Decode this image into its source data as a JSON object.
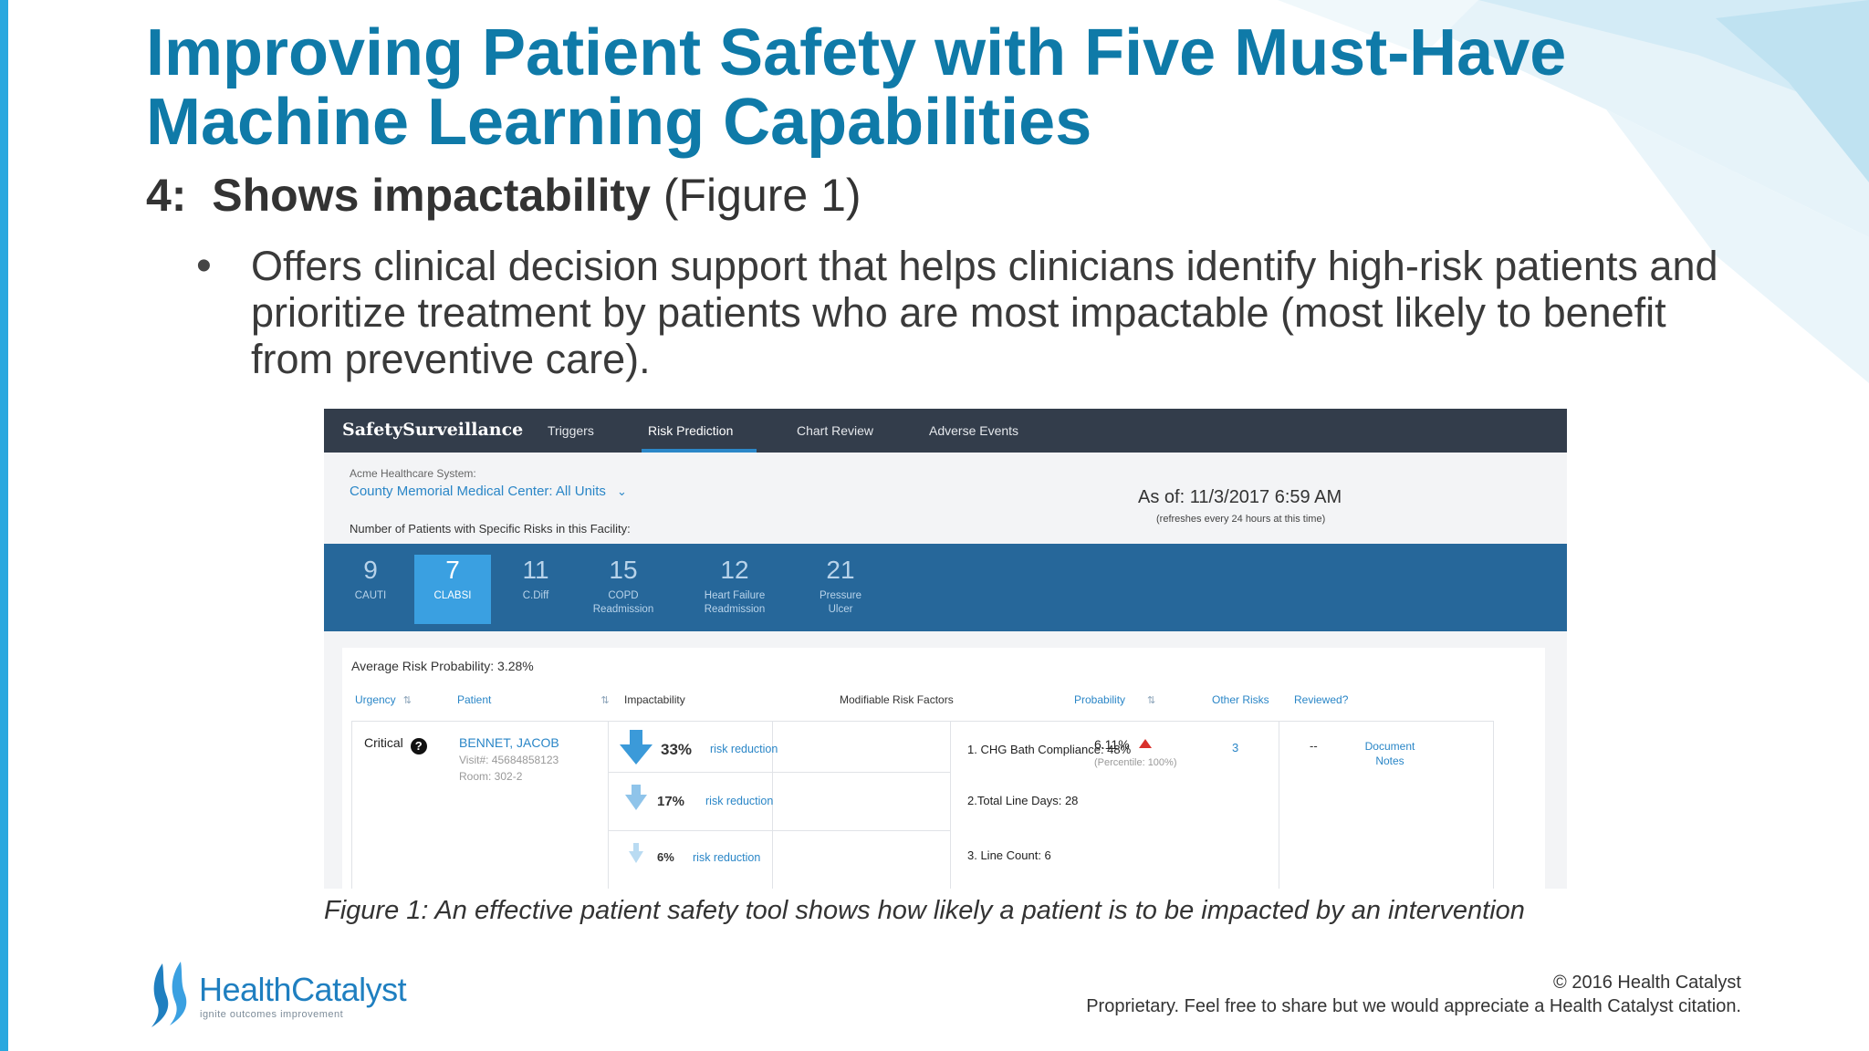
{
  "slide": {
    "title_line1": "Improving Patient Safety with Five Must-Have",
    "title_line2": "Machine Learning Capabilities",
    "subtitle_number": "4:",
    "subtitle_bold": "Shows impactability",
    "subtitle_rest": "(Figure 1)",
    "bullet_symbol": "•",
    "bullet_text": "Offers clinical decision support that helps clinicians identify high-risk patients and prioritize treatment by patients who are most impactable (most likely to benefit from preventive care).",
    "caption": "Figure 1: An effective patient safety tool shows how likely a patient is to be impacted by an intervention",
    "footer": {
      "logo_text": "HealthCatalyst",
      "logo_tagline": "ignite outcomes improvement",
      "copyright": "© 2016 Health Catalyst",
      "proprietary": "Proprietary. Feel free to share but we would appreciate a Health Catalyst citation."
    }
  },
  "app": {
    "brand": "SafetySurveillance",
    "nav": [
      {
        "label": "Triggers",
        "active": false
      },
      {
        "label": "Risk Prediction",
        "active": true
      },
      {
        "label": "Chart Review",
        "active": false
      },
      {
        "label": "Adverse Events",
        "active": false
      }
    ],
    "facility_label": "Acme Healthcare System:",
    "facility_value": "County Memorial Medical Center:  All Units",
    "count_label": "Number of Patients with Specific Risks in this Facility:",
    "as_of": "As of:  11/3/2017 6:59 AM",
    "as_of_note": "(refreshes every 24 hours at this time)",
    "risk_tabs": [
      {
        "count": "9",
        "label1": "CAUTI",
        "label2": "",
        "active": false
      },
      {
        "count": "7",
        "label1": "CLABSI",
        "label2": "",
        "active": true
      },
      {
        "count": "11",
        "label1": "C.Diff",
        "label2": "",
        "active": false
      },
      {
        "count": "15",
        "label1": "COPD",
        "label2": "Readmission",
        "active": false
      },
      {
        "count": "12",
        "label1": "Heart Failure",
        "label2": "Readmission",
        "active": false
      },
      {
        "count": "21",
        "label1": "Pressure",
        "label2": "Ulcer",
        "active": false
      }
    ],
    "avg_risk": "Average Risk Probability: 3.28%",
    "columns": {
      "urgency": "Urgency",
      "patient": "Patient",
      "impactability": "Impactability",
      "factors": "Modifiable Risk Factors",
      "probability": "Probability",
      "other_risks": "Other Risks",
      "reviewed": "Reviewed?"
    },
    "row": {
      "urgency": "Critical",
      "urgency_icon": "?",
      "patient_name": "BENNET, JACOB",
      "visit": "Visit#: 45684858123",
      "room": "Room: 302-2",
      "impacts": [
        {
          "pct": "33%",
          "text": "risk reduction",
          "factor": "1. CHG Bath Compliance: 48%"
        },
        {
          "pct": "17%",
          "text": "risk reduction",
          "factor": "2.Total Line Days: 28"
        },
        {
          "pct": "6%",
          "text": "risk reduction",
          "factor": "3. Line Count: 6"
        }
      ],
      "probability": "6.11%",
      "percentile": "(Percentile: 100%)",
      "other_risks": "3",
      "reviewed": "--",
      "doc_notes_line1": "Document",
      "doc_notes_line2": "Notes"
    },
    "colors": {
      "nav_bg": "#333d4b",
      "band_bg": "#26679a",
      "active_tab": "#3aa0e1",
      "link": "#2a86c7",
      "title": "#0f7aa8"
    }
  }
}
